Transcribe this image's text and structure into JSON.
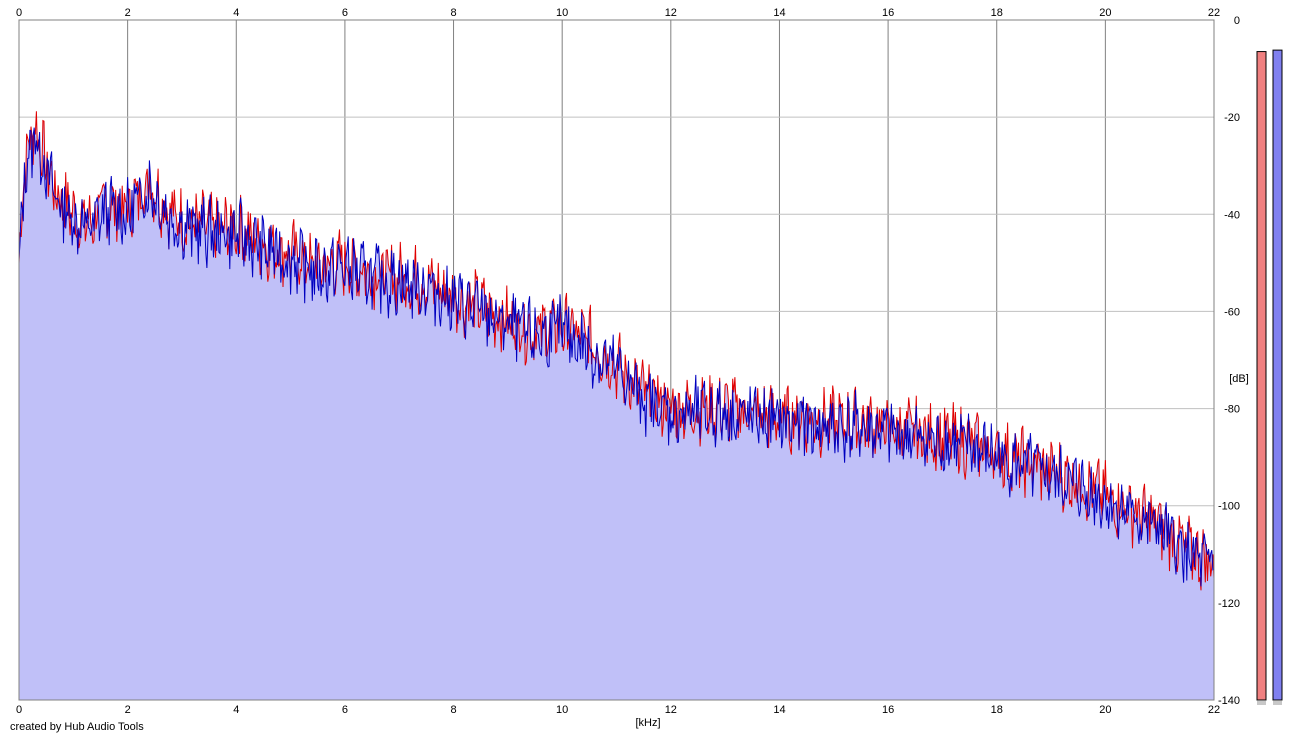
{
  "credit": "created by Hub Audio Tools",
  "chart_data": {
    "type": "area",
    "title": "",
    "xlabel": "[kHz]",
    "ylabel": "[dB]",
    "xlim": [
      0,
      22
    ],
    "ylim": [
      -140,
      0
    ],
    "x_ticks": [
      0,
      2,
      4,
      6,
      8,
      10,
      12,
      14,
      16,
      18,
      20,
      22
    ],
    "y_ticks": [
      0,
      -20,
      -40,
      -60,
      -80,
      -100,
      -120,
      -140
    ],
    "grid": true,
    "legend": "none",
    "colors": {
      "fill": "#c0c0f8",
      "left": "#e00000",
      "right": "#0000c0",
      "meter_left": "#f08080",
      "meter_right": "#8080f0",
      "grid": "#c0c0c0",
      "major_grid": "#808080"
    },
    "series": [
      {
        "color": "#e00000",
        "x": [
          0.0,
          0.1,
          0.2,
          0.3,
          0.5,
          0.7,
          1.0,
          1.3,
          1.6,
          2.0,
          2.4,
          2.8,
          3.2,
          3.6,
          4.0,
          4.5,
          5.0,
          5.5,
          6.0,
          6.5,
          7.0,
          7.5,
          8.0,
          8.5,
          9.0,
          9.5,
          10.0,
          10.5,
          11.0,
          11.5,
          12.0,
          12.5,
          13.0,
          13.5,
          14.0,
          14.5,
          15.0,
          15.5,
          16.0,
          16.5,
          17.0,
          17.5,
          18.0,
          18.5,
          19.0,
          19.5,
          20.0,
          20.5,
          21.0,
          21.5,
          22.0
        ],
        "values": [
          -50,
          -30,
          -25,
          -22,
          -30,
          -36,
          -40,
          -42,
          -38,
          -39,
          -33,
          -40,
          -42,
          -43,
          -43,
          -46,
          -48,
          -51,
          -50,
          -52,
          -53,
          -54,
          -57,
          -59,
          -62,
          -64,
          -63,
          -66,
          -71,
          -77,
          -80,
          -80,
          -80,
          -81,
          -82,
          -82,
          -83,
          -83,
          -84,
          -85,
          -86,
          -87,
          -89,
          -91,
          -93,
          -95,
          -98,
          -101,
          -104,
          -109,
          -112
        ]
      },
      {
        "color": "#0000c0",
        "x": [
          0.0,
          0.1,
          0.2,
          0.3,
          0.5,
          0.7,
          1.0,
          1.3,
          1.6,
          2.0,
          2.4,
          2.8,
          3.2,
          3.6,
          4.0,
          4.5,
          5.0,
          5.5,
          6.0,
          6.5,
          7.0,
          7.5,
          8.0,
          8.5,
          9.0,
          9.5,
          10.0,
          10.5,
          11.0,
          11.5,
          12.0,
          12.5,
          13.0,
          13.5,
          14.0,
          14.5,
          15.0,
          15.5,
          16.0,
          16.5,
          17.0,
          17.5,
          18.0,
          18.5,
          19.0,
          19.5,
          20.0,
          20.5,
          21.0,
          21.5,
          22.0
        ],
        "values": [
          -52,
          -32,
          -27,
          -24,
          -31,
          -37,
          -41,
          -43,
          -39,
          -40,
          -34,
          -41,
          -43,
          -44,
          -44,
          -47,
          -49,
          -52,
          -51,
          -53,
          -54,
          -55,
          -58,
          -60,
          -63,
          -65,
          -64,
          -68,
          -72,
          -78,
          -81,
          -81,
          -81,
          -82,
          -83,
          -83,
          -84,
          -84,
          -85,
          -86,
          -87,
          -88,
          -90,
          -92,
          -94,
          -96,
          -99,
          -102,
          -105,
          -110,
          -113
        ]
      }
    ],
    "meters": {
      "left": -6.5,
      "right": -6.2
    }
  }
}
